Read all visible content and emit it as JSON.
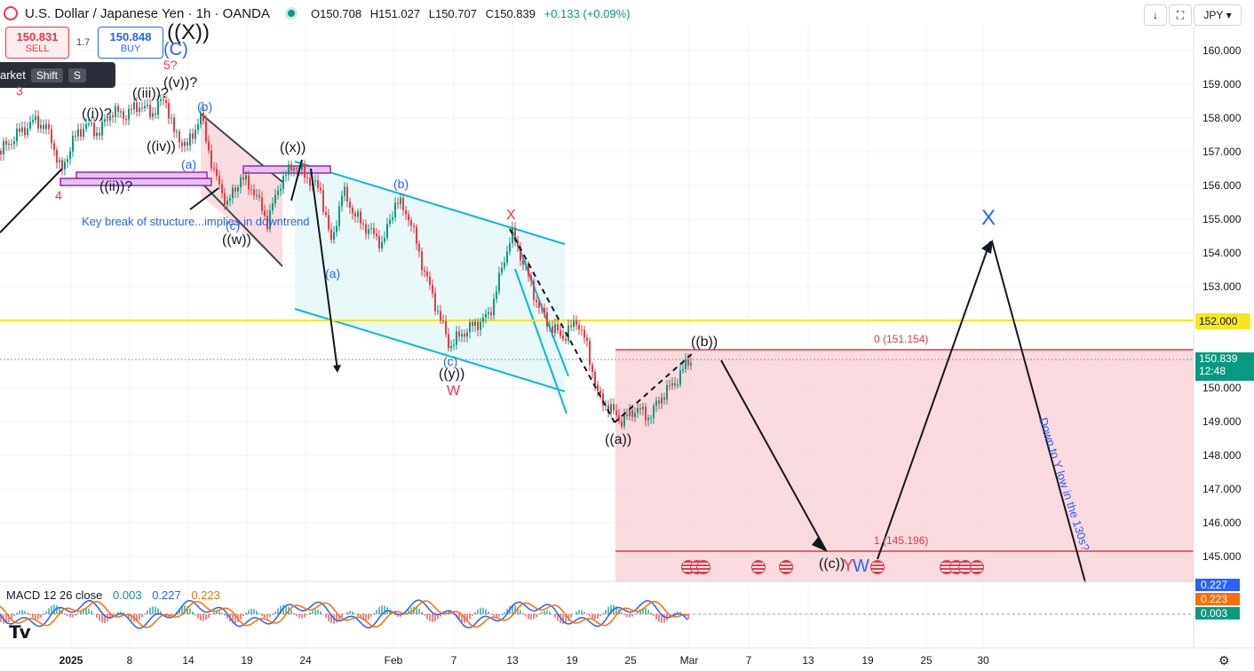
{
  "header": {
    "symbol_title": "U.S. Dollar / Japanese Yen · 1h · OANDA",
    "ohlc": {
      "o": "O150.708",
      "h": "H151.027",
      "l": "L150.707",
      "c": "C150.839",
      "change": "+0.133 (+0.09%)"
    }
  },
  "trade": {
    "sell_price": "150.831",
    "sell_label": "SELL",
    "buy_price": "150.848",
    "buy_label": "BUY",
    "spread": "1.7"
  },
  "tooltip": {
    "label": "arket",
    "key1": "Shift",
    "key2": "S"
  },
  "toolbar": {
    "currency": "JPY"
  },
  "price_axis": {
    "ticks": [
      "160.000",
      "159.000",
      "158.000",
      "157.000",
      "156.000",
      "155.000",
      "154.000",
      "153.000",
      "152.000",
      "151.000",
      "150.000",
      "149.000",
      "148.000",
      "147.000",
      "146.000",
      "145.000"
    ],
    "level_152": "152.000",
    "last_price": "150.839",
    "countdown": "12:48"
  },
  "time_axis": {
    "ticks": [
      "2025",
      "8",
      "14",
      "19",
      "24",
      "Feb",
      "7",
      "13",
      "19",
      "25",
      "Mar",
      "7",
      "13",
      "19",
      "25",
      "30"
    ]
  },
  "annotations": {
    "big_x": "((X))",
    "c": "(C)",
    "five": "5?",
    "three": "3",
    "four": "4",
    "iii": "((iii))?",
    "v": "((v))?",
    "i": "((i))?",
    "iv": "((iv))",
    "ii": "((ii))?",
    "b1": "(b)",
    "a1": "(a)",
    "c1": "(c)",
    "w": "((w))",
    "x": "((x))",
    "key_break": "Key break of structure...implies in downtrend",
    "a2": "(a)",
    "b2": "(b)",
    "c2": "(c)",
    "y": "((y))",
    "W": "W",
    "Xred": "X",
    "aa": "((a))",
    "bb": "((b))",
    "cc": "((c))",
    "Yc": "Y",
    "Wb": "W",
    "Xblue": "X",
    "fib0": "0 (151.154)",
    "fib1": "1 (145.196)",
    "down_text": "Down to Y low in the 130s?"
  },
  "macd": {
    "title": "MACD 12 26 close",
    "v1": "0.003",
    "v2": "0.227",
    "v3": "0.223",
    "tag1": "0.227",
    "tag2": "0.223",
    "tag3": "0.003"
  },
  "colors": {
    "up": "#089981",
    "down": "#f23645",
    "cyan": "#00bcd4",
    "blue": "#2962ff",
    "fib_fill": "#f8d4d8",
    "yellow": "#f5e71c"
  }
}
